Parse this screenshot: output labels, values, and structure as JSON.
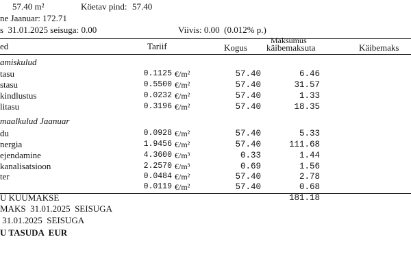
{
  "header": {
    "area": "57.40 m²",
    "heated_label": "Köetav pind:",
    "heated_value": "57.40",
    "month_line": "ne Jaanuar: 172.71",
    "balance_line": "s  31.01.2025 seisuga: 0.00",
    "penalty_line": "Viivis: 0.00  (0.012% p.)"
  },
  "table": {
    "columns": {
      "name": "ed",
      "tariff": "Tariif",
      "quantity": "Kogus",
      "amount_top": "Maksumus",
      "amount_bottom": "käibemaksuta",
      "vat": "Käibemaks"
    },
    "sections": [
      {
        "title": "amiskulud",
        "rows": [
          {
            "name": "tasu",
            "tariff": "0.1125",
            "unit": "€/m²",
            "quantity": "57.40",
            "amount": "6.46"
          },
          {
            "name": "stasu",
            "tariff": "0.5500",
            "unit": "€/m²",
            "quantity": "57.40",
            "amount": "31.57"
          },
          {
            "name": "kindlustus",
            "tariff": "0.0232",
            "unit": "€/m²",
            "quantity": "57.40",
            "amount": "1.33"
          },
          {
            "name": "litasu",
            "tariff": "0.3196",
            "unit": "€/m²",
            "quantity": "57.40",
            "amount": "18.35"
          }
        ]
      },
      {
        "title": "maalkulud Jaanuar",
        "rows": [
          {
            "name": "du",
            "tariff": "0.0928",
            "unit": "€/m²",
            "quantity": "57.40",
            "amount": "5.33"
          },
          {
            "name": "nergia",
            "tariff": "1.9456",
            "unit": "€/m²",
            "quantity": "57.40",
            "amount": "111.68"
          },
          {
            "name": "ejendamine",
            "tariff": "4.3600",
            "unit": "€/m³",
            "quantity": "0.33",
            "amount": "1.44"
          },
          {
            "name": "kanalisatsioon",
            "tariff": "2.2570",
            "unit": "€/m³",
            "quantity": "0.69",
            "amount": "1.56"
          },
          {
            "name": "ter",
            "tariff": "0.0484",
            "unit": "€/m²",
            "quantity": "57.40",
            "amount": "2.78"
          },
          {
            "tariff": "0.0119",
            "unit": "€/m²",
            "quantity": "57.40",
            "amount": "0.68"
          }
        ]
      }
    ]
  },
  "footer": {
    "total_label": "U KUUMAKSE",
    "total": "181.18",
    "line2": "MAKS  31.01.2025  SEISUGA",
    "line3": " 31.01.2025  SEISUGA",
    "line4": "U TASUDA  EUR"
  }
}
